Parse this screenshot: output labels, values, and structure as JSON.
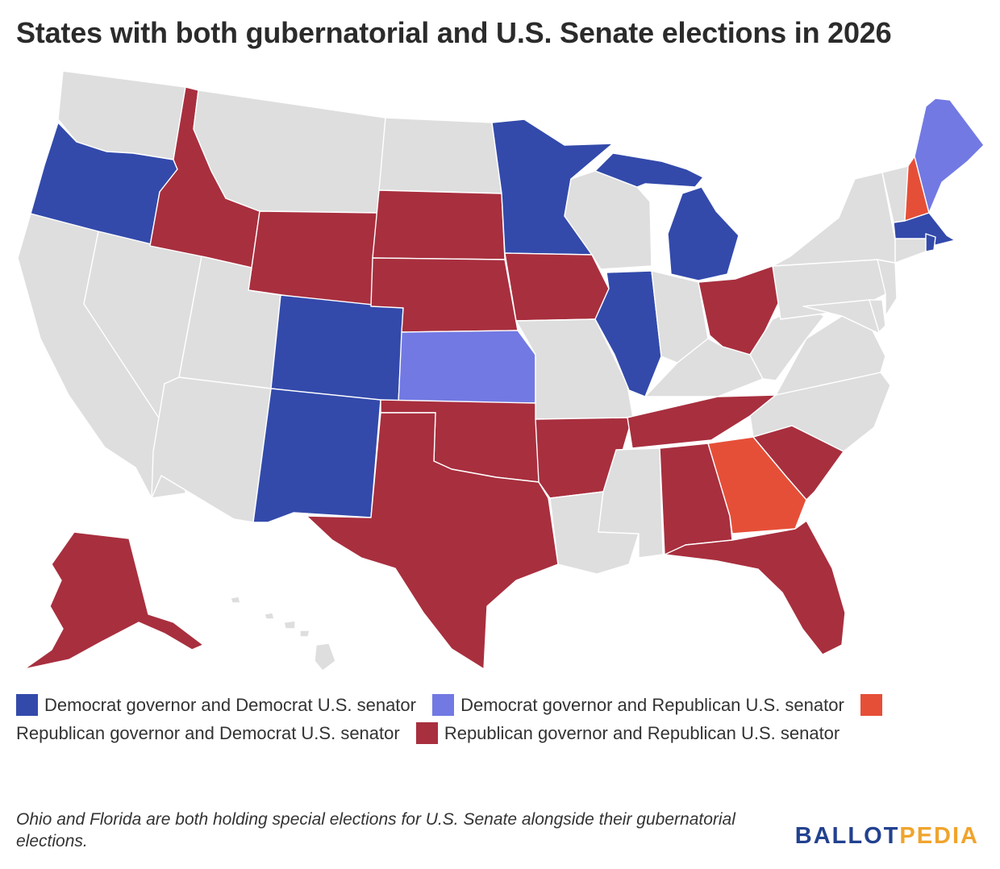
{
  "title": "States with both gubernatorial and U.S. Senate elections in 2026",
  "colors": {
    "none": "#dedede",
    "dem_dem": "#334aab",
    "dem_rep": "#7279e3",
    "rep_dem": "#e64f37",
    "rep_rep": "#a82f3e"
  },
  "legend": [
    {
      "key": "dem_dem",
      "label": "Democrat governor and Democrat U.S. senator"
    },
    {
      "key": "dem_rep",
      "label": "Democrat governor and Republican U.S. senator"
    },
    {
      "key": "rep_dem",
      "label": "Republican governor and Democrat U.S. senator"
    },
    {
      "key": "rep_rep",
      "label": "Republican governor and Republican U.S. senator"
    }
  ],
  "states": {
    "OR": "dem_dem",
    "MN": "dem_dem",
    "MI": "dem_dem",
    "IL": "dem_dem",
    "CO": "dem_dem",
    "NM": "dem_dem",
    "MA": "dem_dem",
    "RI": "dem_dem",
    "ME": "dem_rep",
    "KS": "dem_rep",
    "NH": "rep_dem",
    "GA": "rep_dem",
    "AK": "rep_rep",
    "ID": "rep_rep",
    "WY": "rep_rep",
    "SD": "rep_rep",
    "NE": "rep_rep",
    "IA": "rep_rep",
    "OK": "rep_rep",
    "TX": "rep_rep",
    "AR": "rep_rep",
    "TN": "rep_rep",
    "AL": "rep_rep",
    "SC": "rep_rep",
    "FL": "rep_rep",
    "OH": "rep_rep",
    "WA": "none",
    "CA": "none",
    "NV": "none",
    "UT": "none",
    "AZ": "none",
    "MT": "none",
    "ND": "none",
    "WI": "none",
    "MO": "none",
    "LA": "none",
    "MS": "none",
    "IN": "none",
    "KY": "none",
    "WV": "none",
    "VA": "none",
    "NC": "none",
    "PA": "none",
    "NY": "none",
    "VT": "none",
    "NJ": "none",
    "DE": "none",
    "MD": "none",
    "CT": "none",
    "HI": "none"
  },
  "note": "Ohio and Florida are both holding special elections for U.S. Senate alongside their gubernatorial elections.",
  "logo": {
    "part1": "BALLOT",
    "part2": "PEDIA"
  }
}
